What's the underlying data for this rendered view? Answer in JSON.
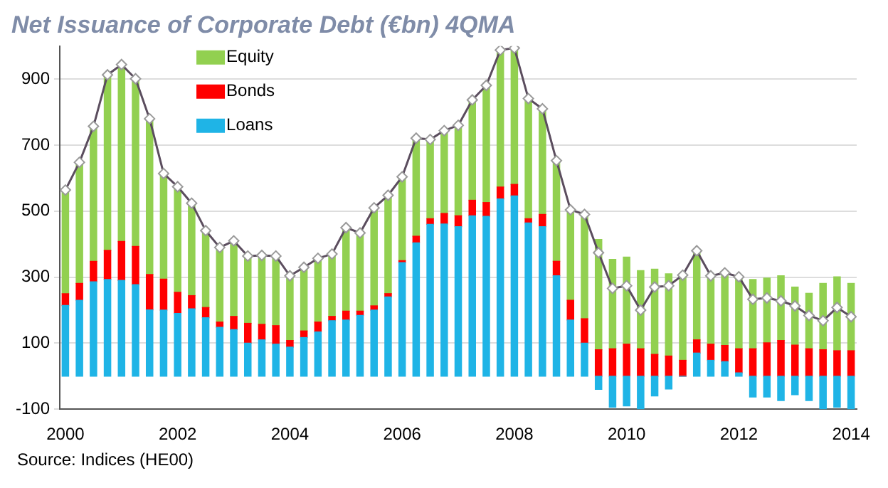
{
  "chart_data": {
    "type": "bar",
    "title": "Net Issuance of Corporate Debt (€bn) 4QMA",
    "stacked": true,
    "x": [
      2000,
      2000.25,
      2000.5,
      2000.75,
      2001,
      2001.25,
      2001.5,
      2001.75,
      2002,
      2002.25,
      2002.5,
      2002.75,
      2003,
      2003.25,
      2003.5,
      2003.75,
      2004,
      2004.25,
      2004.5,
      2004.75,
      2005,
      2005.25,
      2005.5,
      2005.75,
      2006,
      2006.25,
      2006.5,
      2006.75,
      2007,
      2007.25,
      2007.5,
      2007.75,
      2008,
      2008.25,
      2008.5,
      2008.75,
      2009,
      2009.25,
      2009.5,
      2009.75,
      2010,
      2010.25,
      2010.5,
      2010.75,
      2011,
      2011.25,
      2011.5,
      2011.75,
      2012,
      2012.25,
      2012.5,
      2012.75,
      2013,
      2013.25,
      2013.5,
      2013.75,
      2014
    ],
    "series": [
      {
        "name": "Loans",
        "color": "#1fb4e6",
        "values": [
          214,
          230,
          286,
          293,
          290,
          277,
          201,
          200,
          190,
          204,
          177,
          148,
          141,
          100,
          110,
          97,
          88,
          117,
          134,
          168,
          170,
          184,
          200,
          240,
          344,
          404,
          460,
          461,
          453,
          486,
          484,
          537,
          546,
          464,
          453,
          304,
          170,
          100,
          -40,
          -94,
          -90,
          -100,
          -60,
          -39,
          0,
          70,
          48,
          44,
          10,
          -63,
          -63,
          -74,
          -56,
          -74,
          -100,
          -94,
          -100
        ]
      },
      {
        "name": "Bonds",
        "color": "#ff0000",
        "values": [
          36,
          51,
          62,
          88,
          118,
          116,
          107,
          94,
          64,
          40,
          31,
          16,
          40,
          60,
          47,
          56,
          20,
          20,
          30,
          13,
          27,
          13,
          13,
          10,
          6,
          20,
          17,
          32,
          33,
          47,
          42,
          36,
          35,
          13,
          37,
          44,
          60,
          74,
          80,
          83,
          97,
          83,
          66,
          61,
          48,
          40,
          49,
          49,
          73,
          83,
          101,
          108,
          94,
          83,
          80,
          77,
          77
        ]
      },
      {
        "name": "Equity",
        "color": "#92d050",
        "values": [
          314,
          367,
          409,
          532,
          536,
          508,
          472,
          320,
          320,
          280,
          233,
          226,
          229,
          204,
          209,
          211,
          196,
          193,
          193,
          189,
          253,
          237,
          297,
          298,
          254,
          297,
          240,
          251,
          274,
          304,
          355,
          415,
          413,
          364,
          320,
          305,
          274,
          316,
          334,
          271,
          264,
          237,
          258,
          249,
          258,
          270,
          207,
          220,
          218,
          210,
          196,
          196,
          176,
          168,
          201,
          224,
          204
        ]
      },
      {
        "type": "line",
        "color": "#5b4d5e",
        "marker": "diamond",
        "values": [
          564,
          648,
          757,
          913,
          944,
          901,
          780,
          614,
          574,
          524,
          441,
          390,
          410,
          364,
          366,
          364,
          304,
          330,
          357,
          370,
          450,
          434,
          510,
          548,
          604,
          721,
          717,
          744,
          760,
          837,
          881,
          988,
          994,
          841,
          810,
          653,
          504,
          490,
          374,
          266,
          274,
          200,
          270,
          274,
          306,
          380,
          304,
          313,
          301,
          233,
          237,
          228,
          213,
          184,
          168,
          208,
          180
        ]
      }
    ],
    "xlim": [
      1999.9,
      2014.1
    ],
    "xticks": [
      2000,
      2002,
      2004,
      2006,
      2008,
      2010,
      2012,
      2014
    ],
    "ylim": [
      -100,
      1000
    ],
    "yticks": [
      -100,
      100,
      300,
      500,
      700,
      900
    ],
    "grid": "y",
    "legend": "top left",
    "annotations": [
      "Source: Indices (HE00)"
    ]
  }
}
